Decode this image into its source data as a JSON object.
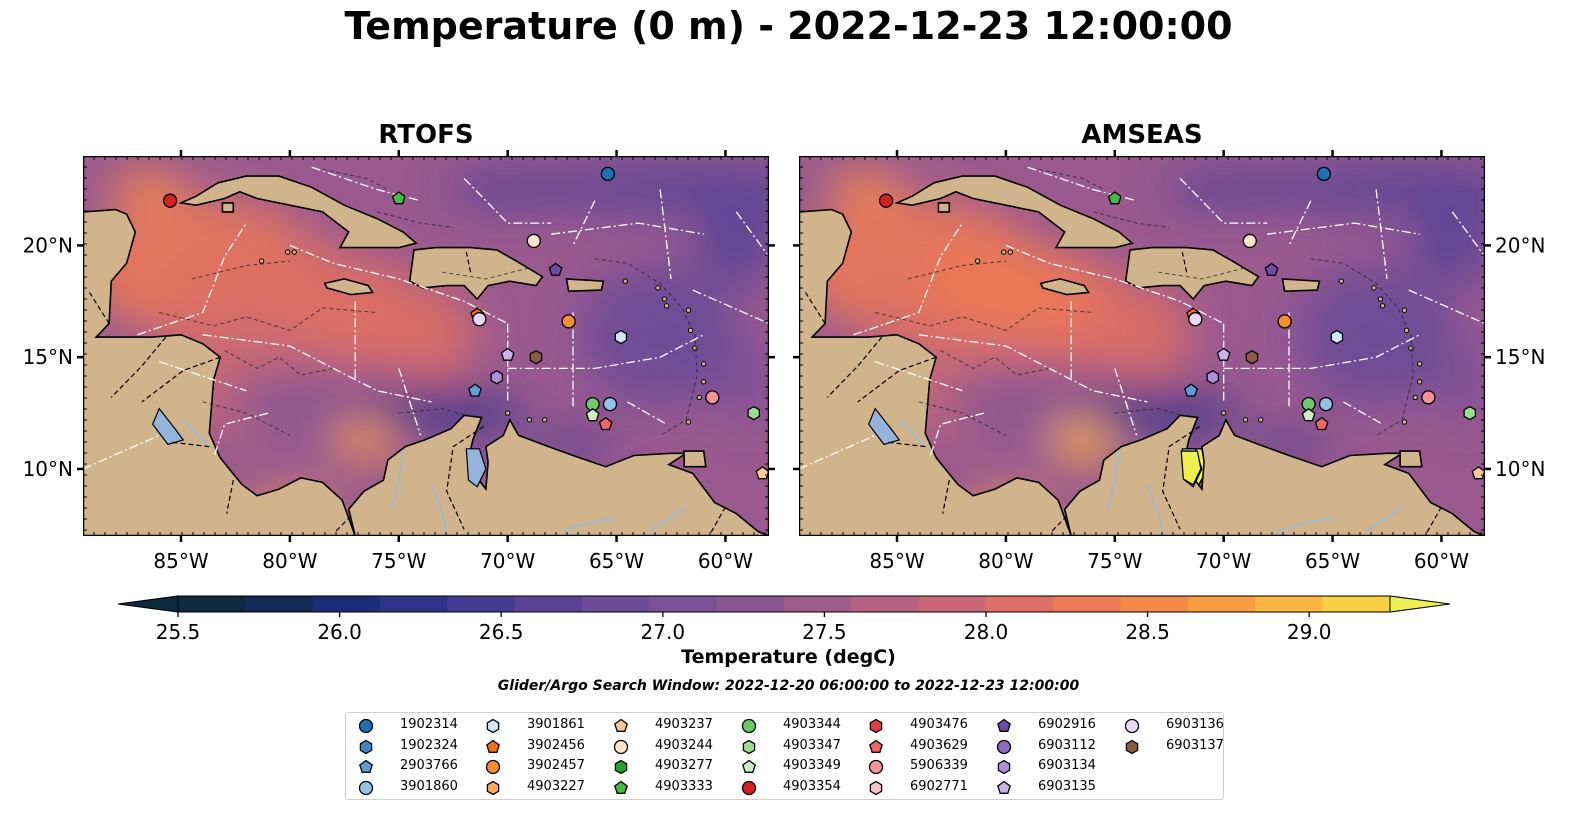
{
  "title": "Temperature (0 m) - 2022-12-23 12:00:00",
  "panels": [
    {
      "title": "RTOFS",
      "id": "rtofs"
    },
    {
      "title": "AMSEAS",
      "id": "amseas"
    }
  ],
  "axes": {
    "lon_ticks": [
      "85°W",
      "80°W",
      "75°W",
      "70°W",
      "65°W",
      "60°W"
    ],
    "lat_ticks": [
      "20°N",
      "15°N",
      "10°N"
    ],
    "lon_range": [
      -89.5,
      -58.0
    ],
    "lat_range": [
      7.0,
      24.0
    ]
  },
  "colorbar": {
    "label": "Temperature (degC)",
    "ticks": [
      "25.5",
      "26.0",
      "26.5",
      "27.0",
      "27.5",
      "28.0",
      "28.5",
      "29.0"
    ],
    "range": [
      25.5,
      29.25
    ],
    "colors": [
      "#0d2a3e",
      "#122a55",
      "#1c2e79",
      "#2c3389",
      "#433b92",
      "#5a4397",
      "#6b4a98",
      "#7a5096",
      "#8a5692",
      "#a05c8a",
      "#b66180",
      "#c96874",
      "#dd6f64",
      "#ec7957",
      "#f5894b",
      "#f99d42",
      "#fab63f",
      "#f7d043",
      "#eef04f"
    ]
  },
  "map_colors": {
    "land": "#d2b48c",
    "ocean_mask": "#94b4de",
    "coast": "#000000",
    "river": "#a4b9c9",
    "eez": "#ffffff"
  },
  "search_window": "Glider/Argo Search Window: 2022-12-20 06:00:00 to 2022-12-23 12:00:00",
  "legend": [
    {
      "id": "1902314",
      "marker": "circle",
      "color": "#1f6fb4"
    },
    {
      "id": "1902324",
      "marker": "hexagon",
      "color": "#3f87c6"
    },
    {
      "id": "2903766",
      "marker": "pentagon",
      "color": "#5c9fd8"
    },
    {
      "id": "3901860",
      "marker": "circle",
      "color": "#93c1ea"
    },
    {
      "id": "3901861",
      "marker": "hexagon",
      "color": "#cfe6f8"
    },
    {
      "id": "3902456",
      "marker": "pentagon",
      "color": "#f0720f"
    },
    {
      "id": "3902457",
      "marker": "circle",
      "color": "#f68d2f"
    },
    {
      "id": "4903227",
      "marker": "hexagon",
      "color": "#fbaa5e"
    },
    {
      "id": "4903237",
      "marker": "pentagon",
      "color": "#fcc996"
    },
    {
      "id": "4903244",
      "marker": "circle",
      "color": "#fde3c8"
    },
    {
      "id": "4903277",
      "marker": "hexagon",
      "color": "#22a12c"
    },
    {
      "id": "4903333",
      "marker": "pentagon",
      "color": "#47b849"
    },
    {
      "id": "4903344",
      "marker": "circle",
      "color": "#6fc86b"
    },
    {
      "id": "4903347",
      "marker": "hexagon",
      "color": "#9ddb93"
    },
    {
      "id": "4903349",
      "marker": "pentagon",
      "color": "#ccefc2"
    },
    {
      "id": "4903354",
      "marker": "circle",
      "color": "#d42222"
    },
    {
      "id": "4903476",
      "marker": "hexagon",
      "color": "#e24040"
    },
    {
      "id": "4903629",
      "marker": "pentagon",
      "color": "#ef6565"
    },
    {
      "id": "5906339",
      "marker": "circle",
      "color": "#f39393"
    },
    {
      "id": "6902771",
      "marker": "hexagon",
      "color": "#f8c3c1"
    },
    {
      "id": "6902916",
      "marker": "pentagon",
      "color": "#6e4aa8"
    },
    {
      "id": "6903112",
      "marker": "circle",
      "color": "#8d6ac0"
    },
    {
      "id": "6903134",
      "marker": "hexagon",
      "color": "#ab8fd7"
    },
    {
      "id": "6903135",
      "marker": "pentagon",
      "color": "#c9b3ea"
    },
    {
      "id": "6903136",
      "marker": "circle",
      "color": "#e8d8f8"
    },
    {
      "id": "6903137",
      "marker": "hexagon",
      "color": "#8a5a44"
    }
  ],
  "platforms": [
    {
      "id": "4903354",
      "lon": -85.5,
      "lat": 22.0
    },
    {
      "id": "4903333",
      "lon": -75.0,
      "lat": 22.1
    },
    {
      "id": "1902314",
      "lon": -65.4,
      "lat": 23.2
    },
    {
      "id": "4903244",
      "lon": -68.8,
      "lat": 20.2
    },
    {
      "id": "6902916",
      "lon": -67.8,
      "lat": 18.9
    },
    {
      "id": "3902456",
      "lon": -71.4,
      "lat": 16.9
    },
    {
      "id": "6903136",
      "lon": -71.3,
      "lat": 16.7
    },
    {
      "id": "3902457",
      "lon": -67.2,
      "lat": 16.6
    },
    {
      "id": "3901861",
      "lon": -64.8,
      "lat": 15.9
    },
    {
      "id": "6903135",
      "lon": -70.0,
      "lat": 15.1
    },
    {
      "id": "6903137",
      "lon": -68.7,
      "lat": 15.0
    },
    {
      "id": "6903134",
      "lon": -70.5,
      "lat": 14.1
    },
    {
      "id": "2903766",
      "lon": -71.5,
      "lat": 13.5
    },
    {
      "id": "4903344",
      "lon": -66.1,
      "lat": 12.9
    },
    {
      "id": "3901860",
      "lon": -65.3,
      "lat": 12.9
    },
    {
      "id": "4903349",
      "lon": -66.1,
      "lat": 12.4
    },
    {
      "id": "4903629",
      "lon": -65.5,
      "lat": 12.0
    },
    {
      "id": "5906339",
      "lon": -60.6,
      "lat": 13.2
    },
    {
      "id": "4903347",
      "lon": -58.7,
      "lat": 12.5
    },
    {
      "id": "4903237",
      "lon": -58.3,
      "lat": 9.8
    }
  ]
}
